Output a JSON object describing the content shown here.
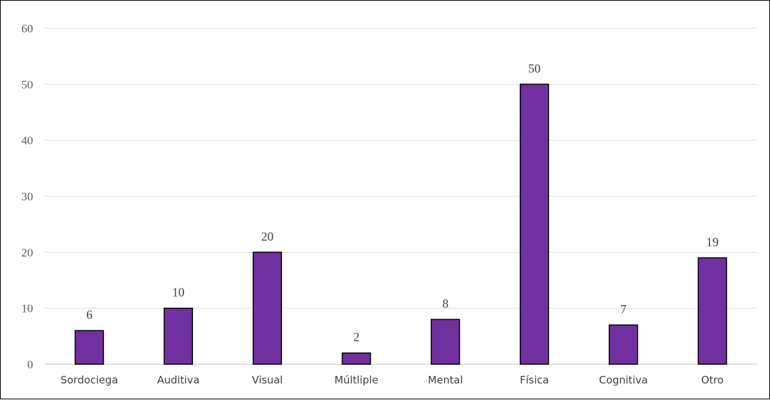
{
  "chart_data": {
    "type": "bar",
    "categories": [
      "Sordociega",
      "Auditiva",
      "Visual",
      "Múltliple",
      "Mental",
      "Física",
      "Cognitiva",
      "Otro"
    ],
    "values": [
      6,
      10,
      20,
      2,
      8,
      50,
      7,
      19
    ],
    "yticks": [
      "0",
      "10",
      "20",
      "30",
      "40",
      "50",
      "60"
    ],
    "ylim": [
      0,
      60
    ],
    "grid": true,
    "data_labels": true,
    "bar_color": "#7030a0",
    "bar_edge_color": "#000000"
  }
}
